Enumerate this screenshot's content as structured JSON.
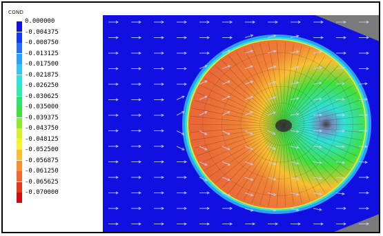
{
  "legend": {
    "title": "COND",
    "entries": [
      {
        "label": "0.000000",
        "color": "#1010e0"
      },
      {
        "label": "-0.004375",
        "color": "#1438f0"
      },
      {
        "label": "-0.008750",
        "color": "#2070f8"
      },
      {
        "label": "-0.013125",
        "color": "#2ca0f8"
      },
      {
        "label": "-0.017500",
        "color": "#30c8f0"
      },
      {
        "label": "-0.021875",
        "color": "#30e0d8"
      },
      {
        "label": "-0.026250",
        "color": "#30e8a8"
      },
      {
        "label": "-0.030625",
        "color": "#30e070"
      },
      {
        "label": "-0.035000",
        "color": "#40e040"
      },
      {
        "label": "-0.039375",
        "color": "#90e830"
      },
      {
        "label": "-0.043750",
        "color": "#d8f030"
      },
      {
        "label": "-0.048125",
        "color": "#f8f030"
      },
      {
        "label": "-0.052500",
        "color": "#f8c030"
      },
      {
        "label": "-0.056875",
        "color": "#f89030"
      },
      {
        "label": "-0.061250",
        "color": "#f06830"
      },
      {
        "label": "-0.065625",
        "color": "#e03818"
      },
      {
        "label": "-0.070000",
        "color": "#c81010"
      }
    ]
  },
  "plot": {
    "background_color": "#1010e0",
    "boundary_color": "#7a7a7a",
    "vector_color": "#c8d0ff",
    "contour_stops": [
      "#30e0d8",
      "#40e040",
      "#f8c030",
      "#f08038",
      "#e86838"
    ]
  }
}
